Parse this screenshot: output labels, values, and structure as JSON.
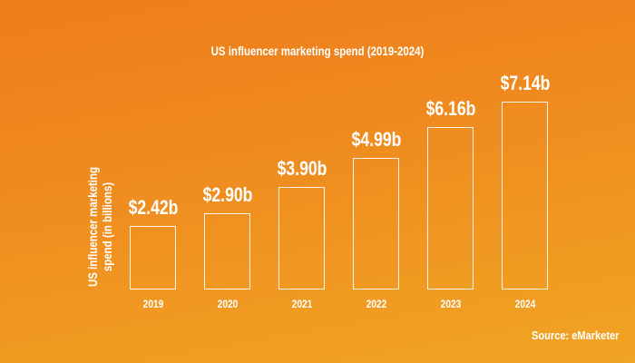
{
  "chart_data": {
    "type": "bar",
    "title": "US influencer marketing spend (2019-2024)",
    "ylabel": "US influencer marketing spend (in billions)",
    "xlabel": "",
    "categories": [
      "2019",
      "2020",
      "2021",
      "2022",
      "2023",
      "2024"
    ],
    "values": [
      2.42,
      2.9,
      3.9,
      4.99,
      6.16,
      7.14
    ],
    "data_labels": [
      "$2.42b",
      "$2.90b",
      "$3.90b",
      "$4.99b",
      "$6.16b",
      "$7.14b"
    ],
    "ylim": [
      0,
      7.14
    ],
    "grid": false,
    "bar_style": "outline",
    "colors": {
      "bar_outline": "#ffffff",
      "background_top": "#ee7d1c",
      "background_bottom": "#f0a423"
    }
  },
  "source": "Source: eMarketer"
}
